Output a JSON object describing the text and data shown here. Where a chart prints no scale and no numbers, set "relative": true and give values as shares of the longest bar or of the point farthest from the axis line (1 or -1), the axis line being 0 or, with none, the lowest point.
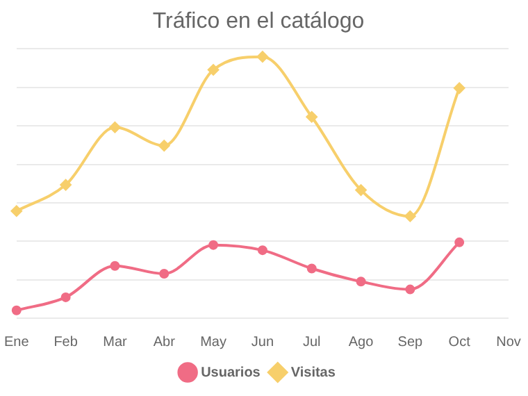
{
  "chart_data": {
    "type": "line",
    "title": "Tráfico en el catálogo",
    "relative": true,
    "grid": "y",
    "legend": "bottom",
    "categories": [
      "Ene",
      "Feb",
      "Mar",
      "Abr",
      "May",
      "Jun",
      "Jul",
      "Ago",
      "Sep",
      "Oct",
      "Nov"
    ],
    "series": [
      {
        "name": "Usuarios",
        "color": "#f06c85",
        "marker": "circle",
        "values": [
          0.03,
          0.08,
          0.2,
          0.17,
          0.28,
          0.26,
          0.19,
          0.14,
          0.11,
          0.29,
          null
        ]
      },
      {
        "name": "Visitas",
        "color": "#f7cf6b",
        "marker": "diamond",
        "values": [
          0.41,
          0.51,
          0.73,
          0.66,
          0.95,
          1,
          0.77,
          0.49,
          0.39,
          0.88,
          null
        ]
      }
    ]
  }
}
